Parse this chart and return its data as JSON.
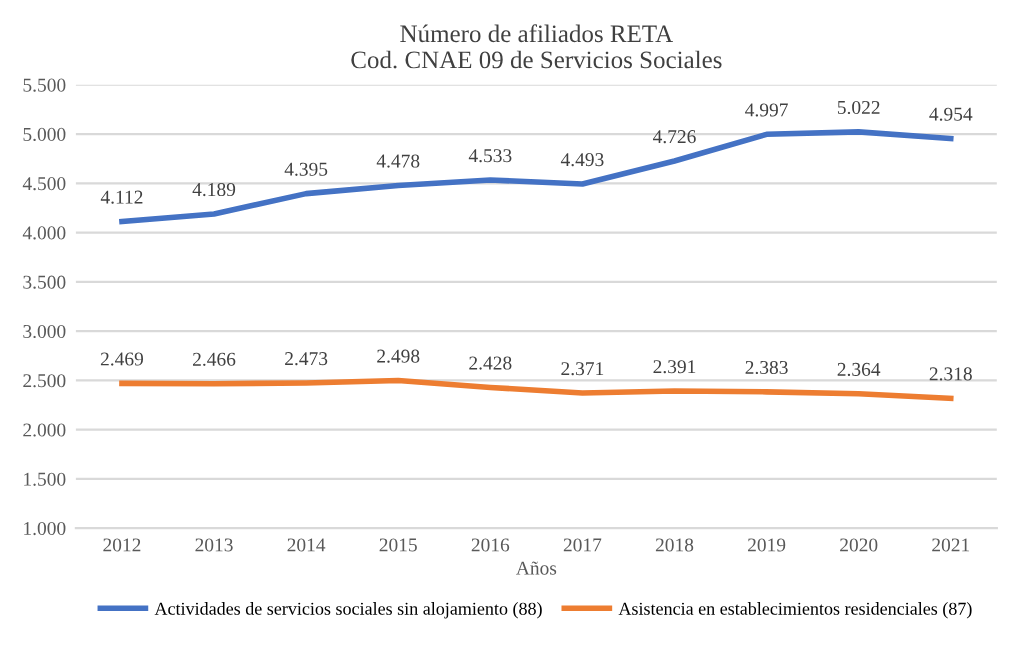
{
  "chart_data": {
    "type": "line",
    "title": "Número de afiliados RETA\nCod. CNAE 09 de Servicios Sociales",
    "xlabel": "Años",
    "categories": [
      "2012",
      "2013",
      "2014",
      "2015",
      "2016",
      "2017",
      "2018",
      "2019",
      "2020",
      "2021"
    ],
    "series": [
      {
        "name": "Actividades de servicios sociales sin alojamiento (88)",
        "color": "#4472c4",
        "values": [
          4112,
          4189,
          4395,
          4478,
          4533,
          4493,
          4726,
          4997,
          5022,
          4954
        ],
        "value_labels": [
          "4.112",
          "4.189",
          "4.395",
          "4.478",
          "4.533",
          "4.493",
          "4.726",
          "4.997",
          "5.022",
          "4.954"
        ]
      },
      {
        "name": "Asistencia en establecimientos residenciales (87)",
        "color": "#ed7d31",
        "values": [
          2469,
          2466,
          2473,
          2498,
          2428,
          2371,
          2391,
          2383,
          2364,
          2318
        ],
        "value_labels": [
          "2.469",
          "2.466",
          "2.473",
          "2.498",
          "2.428",
          "2.371",
          "2.391",
          "2.383",
          "2.364",
          "2.318"
        ]
      }
    ],
    "ylim": [
      1000,
      5500
    ],
    "yticks": [
      {
        "value": 1000,
        "label": "1.000"
      },
      {
        "value": 1500,
        "label": "1.500"
      },
      {
        "value": 2000,
        "label": "2.000"
      },
      {
        "value": 2500,
        "label": "2.500"
      },
      {
        "value": 3000,
        "label": "3.000"
      },
      {
        "value": 3500,
        "label": "3.500"
      },
      {
        "value": 4000,
        "label": "4.000"
      },
      {
        "value": 4500,
        "label": "4.500"
      },
      {
        "value": 5000,
        "label": "5.000"
      },
      {
        "value": 5500,
        "label": "5.500"
      }
    ],
    "grid": "y",
    "legend": "bottom",
    "marker": "none",
    "line_style": "solid"
  }
}
